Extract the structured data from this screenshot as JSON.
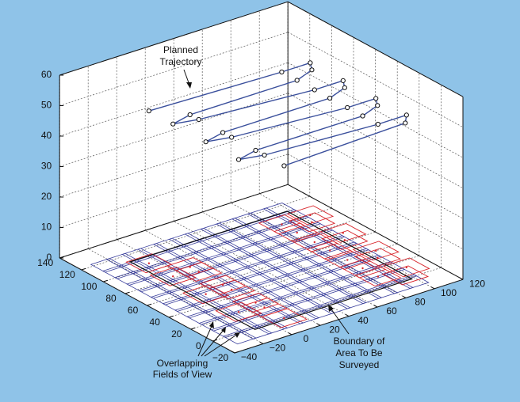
{
  "chart_data": {
    "type": "line3d",
    "x": [
      -5,
      85,
      105,
      100,
      85,
      10,
      -5,
      10,
      85,
      105,
      100,
      85,
      10,
      -5,
      10,
      85,
      105,
      100,
      85,
      10,
      -5,
      10,
      85,
      105,
      98,
      10
    ],
    "y": [
      104,
      100,
      100,
      92,
      86,
      86,
      82,
      78,
      70,
      70,
      62,
      56,
      56,
      52,
      48,
      40,
      40,
      32,
      26,
      26,
      22,
      18,
      12,
      12,
      4,
      0
    ],
    "z": [
      50,
      50,
      50,
      50,
      50,
      50,
      50,
      50,
      50,
      50,
      50,
      50,
      50,
      50,
      50,
      50,
      50,
      50,
      50,
      50,
      50,
      50,
      50,
      50,
      50,
      50
    ],
    "color": "#3a4f9c",
    "xlim": [
      -40,
      120
    ],
    "ylim": [
      -20,
      140
    ],
    "zlim": [
      0,
      60
    ],
    "xticks": [
      {
        "value": -40,
        "label": "−40"
      },
      {
        "value": -20,
        "label": "−20"
      },
      0,
      20,
      40,
      60,
      80,
      100,
      120
    ],
    "yticks": [
      140,
      120,
      100,
      80,
      60,
      40,
      20,
      0,
      {
        "value": -20,
        "label": "−20"
      }
    ],
    "zticks": [
      0,
      10,
      20,
      30,
      40,
      50,
      60
    ],
    "grid": true,
    "annotations": [
      {
        "lines": [
          "Planned",
          "Trajectory"
        ]
      },
      {
        "lines": [
          "Boundary of",
          "Area To Be",
          "Surveyed"
        ]
      },
      {
        "lines": [
          "Overlapping",
          "Fields of View"
        ]
      }
    ]
  }
}
